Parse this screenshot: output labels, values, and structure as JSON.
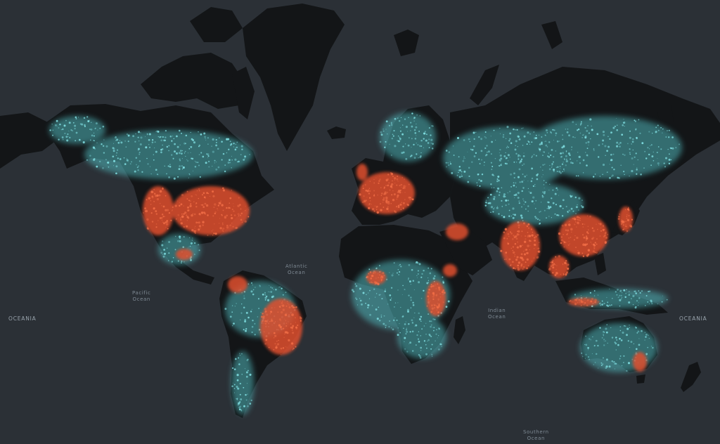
{
  "map": {
    "style": "dark basemap, heat-style density overlay",
    "colors": {
      "ocean": "#2b3036",
      "land_unpopulated": "#121416",
      "density_low": "#5fc9cc",
      "density_mid": "#d9c7bf",
      "density_high": "#e0502f"
    },
    "labels": {
      "oceania_west": "OCEANIA",
      "oceania_east": "OCEANIA",
      "pacific": "Pacific\nOcean",
      "atlantic": "Atlantic\nOcean",
      "indian": "Indian\nOcean",
      "southern": "Southern\nOcean"
    }
  }
}
